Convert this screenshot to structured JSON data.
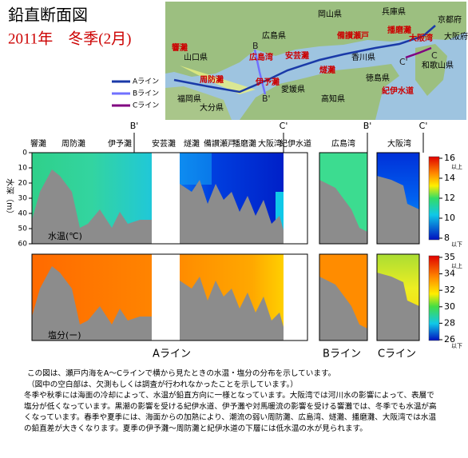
{
  "header": {
    "title": "鉛直断面図",
    "subtitle": "2011年　冬季(2月)"
  },
  "map": {
    "prefectures": [
      "岡山県",
      "兵庫県",
      "京都府",
      "広島県",
      "山口県",
      "香川県",
      "大阪府",
      "和歌山県",
      "愛媛県",
      "徳島県",
      "高知県",
      "福岡県",
      "大分県"
    ],
    "seas": [
      "響灘",
      "広島湾",
      "安芸灘",
      "備讃瀬戸",
      "播磨灘",
      "大阪湾",
      "周防灘",
      "伊予灘",
      "燧灘",
      "紀伊水道"
    ],
    "markers": [
      "B",
      "B'",
      "C",
      "C'"
    ],
    "legend": [
      "Aライン",
      "Bライン",
      "Cライン"
    ]
  },
  "section_labels": [
    "響灘",
    "周防灘",
    "伊予灘",
    "安芸灘",
    "燧灘",
    "備讃瀬戸",
    "播磨灘",
    "大阪湾",
    "紀伊水道",
    "広島湾",
    "大阪湾"
  ],
  "section_markers": [
    "B'",
    "C'",
    "B'",
    "C'"
  ],
  "depth_axis": {
    "label": "水深（m）",
    "ticks": [
      0,
      10,
      20,
      30,
      40,
      50,
      60
    ]
  },
  "temperature": {
    "label": "水温(℃)",
    "colorbar_ticks": [
      16,
      14,
      12,
      10,
      8
    ],
    "top_note": "以上",
    "bottom_note": "以下"
  },
  "salinity": {
    "label": "塩分(ー)",
    "colorbar_ticks": [
      35,
      34,
      32,
      30,
      28,
      26
    ],
    "top_note": "以上",
    "bottom_note": "以下"
  },
  "line_labels": [
    "Aライン",
    "Bライン",
    "Cライン"
  ],
  "caption": [
    "この図は、瀬戸内海をA～Cラインで横から見たときの水温・塩分の分布を示しています。",
    "（図中の空白部は、欠測もしくは調査が行われなかったことを示しています。）",
    "冬季や秋季には海面の冷却によって、水温が鉛直方向に一様となっています。大阪湾では河川水の影響によって、表層で",
    "塩分が低くなっています。黒潮の影響を受ける紀伊水道、伊予灘や対馬暖流の影響を受ける響灘では、冬季でも水温が高",
    "くなっています。春季や夏季には、海面からの加熱により、潮流の弱い周防灘、広島湾、燧灘、播磨灘、大阪湾では水温",
    "の鉛直差が大きくなります。夏季の伊予灘～周防灘と紀伊水道の下層には低水温の水が見られます。"
  ]
}
